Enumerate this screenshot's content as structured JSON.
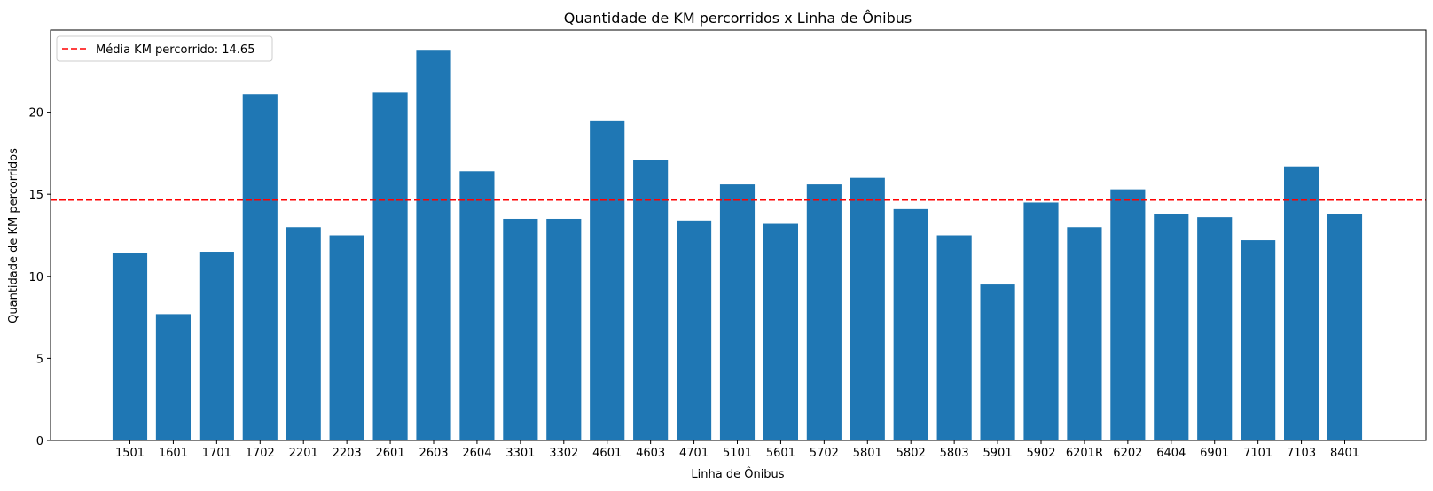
{
  "chart_data": {
    "type": "bar",
    "title": "Quantidade de KM percorridos x Linha de Ônibus",
    "xlabel": "Linha de Ônibus",
    "ylabel": "Quantidade de KM percorridos",
    "ylim": [
      0,
      25
    ],
    "yticks": [
      0,
      5,
      10,
      15,
      20
    ],
    "categories": [
      "1501",
      "1601",
      "1701",
      "1702",
      "2201",
      "2203",
      "2601",
      "2603",
      "2604",
      "3301",
      "3302",
      "4601",
      "4603",
      "4701",
      "5101",
      "5601",
      "5702",
      "5801",
      "5802",
      "5803",
      "5901",
      "5902",
      "6201R",
      "6202",
      "6404",
      "6901",
      "7101",
      "7103",
      "8401"
    ],
    "values": [
      11.4,
      7.7,
      11.5,
      21.1,
      13.0,
      12.5,
      21.2,
      23.8,
      16.4,
      13.5,
      13.5,
      19.5,
      17.1,
      13.4,
      15.6,
      13.2,
      15.6,
      16.0,
      14.1,
      12.5,
      9.5,
      14.5,
      13.0,
      15.3,
      13.8,
      13.6,
      12.2,
      16.7,
      13.8
    ],
    "bar_color": "#1f77b4",
    "mean_line": {
      "value": 14.65,
      "color": "#ff0000",
      "style": "dashed",
      "label": "Média KM percorrido: 14.65"
    },
    "legend_position": "top-left",
    "grid": false
  }
}
